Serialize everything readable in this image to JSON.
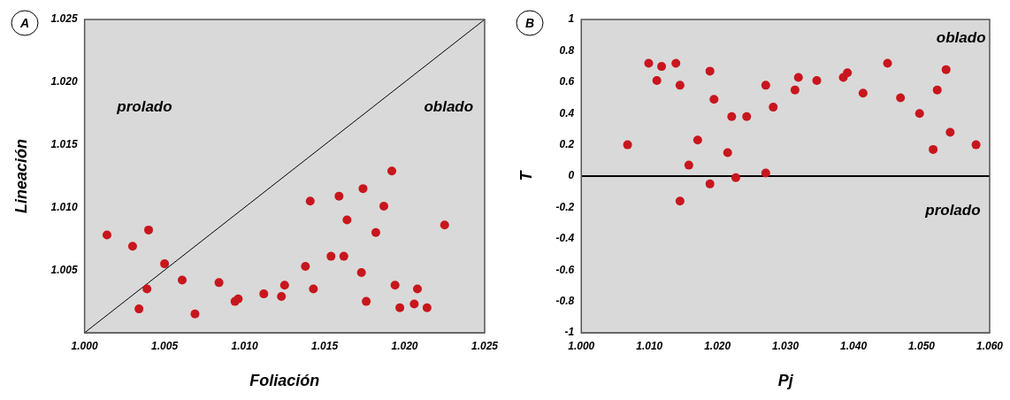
{
  "chart_data": [
    {
      "type": "scatter",
      "xlabel": "Foliación",
      "ylabel": "Lineación",
      "xlim": [
        1.0,
        1.025
      ],
      "xticks": [
        {
          "value": 1.0,
          "label": "1.000"
        },
        {
          "value": 1.005,
          "label": "1.005"
        },
        {
          "value": 1.01,
          "label": "1.010"
        },
        {
          "value": 1.015,
          "label": "1.015"
        },
        {
          "value": 1.02,
          "label": "1.020"
        },
        {
          "value": 1.025,
          "label": "1.025"
        }
      ],
      "ylim": [
        1.0,
        1.025
      ],
      "yticks": [
        {
          "value": 1.005,
          "label": "1.005"
        },
        {
          "value": 1.01,
          "label": "1.010"
        },
        {
          "value": 1.015,
          "label": "1.015"
        },
        {
          "value": 1.02,
          "label": "1.020"
        },
        {
          "value": 1.025,
          "label": "1.025"
        }
      ],
      "grid": false,
      "legend": false,
      "marker": "circle",
      "series": [
        {
          "type": "scatter",
          "color": "#c8161d",
          "x": [
            1.0014,
            1.003,
            1.004,
            1.005,
            1.0039,
            1.0034,
            1.0061,
            1.0069,
            1.0084,
            1.0094,
            1.0096,
            1.0112,
            1.0123,
            1.0125,
            1.0138,
            1.0141,
            1.0143,
            1.0154,
            1.0159,
            1.0162,
            1.0164,
            1.0173,
            1.0174,
            1.0176,
            1.0182,
            1.0187,
            1.0192,
            1.0194,
            1.0197,
            1.0206,
            1.0208,
            1.0214,
            1.0225
          ],
          "values": [
            1.0078,
            1.0069,
            1.0082,
            1.0055,
            1.0035,
            1.0019,
            1.0042,
            1.0015,
            1.004,
            1.0025,
            1.0027,
            1.0031,
            1.0029,
            1.0038,
            1.0053,
            1.0105,
            1.0035,
            1.0061,
            1.0109,
            1.0061,
            1.009,
            1.0048,
            1.0115,
            1.0025,
            1.008,
            1.0101,
            1.0129,
            1.0038,
            1.002,
            1.0023,
            1.0035,
            1.002,
            1.0086
          ]
        },
        {
          "type": "line",
          "color": "#000000",
          "marker": "none",
          "x": [
            1.0,
            1.025
          ],
          "values": [
            1.0,
            1.025
          ]
        }
      ],
      "annotations": [
        "A",
        "prolado",
        "oblado"
      ]
    },
    {
      "type": "scatter",
      "xlabel": "Pj",
      "ylabel": "T",
      "xlim": [
        1.0,
        1.06
      ],
      "xticks": [
        {
          "value": 1.0,
          "label": "1.000"
        },
        {
          "value": 1.01,
          "label": "1.010"
        },
        {
          "value": 1.02,
          "label": "1.020"
        },
        {
          "value": 1.03,
          "label": "1.030"
        },
        {
          "value": 1.04,
          "label": "1.040"
        },
        {
          "value": 1.05,
          "label": "1.050"
        },
        {
          "value": 1.06,
          "label": "1.060"
        }
      ],
      "ylim": [
        -1,
        1
      ],
      "yticks": [
        -1,
        -0.8,
        -0.6,
        -0.4,
        -0.2,
        0,
        0.2,
        0.4,
        0.6,
        0.8,
        1
      ],
      "grid": false,
      "legend": false,
      "marker": "circle",
      "series": [
        {
          "type": "scatter",
          "color": "#c8161d",
          "x": [
            1.0068,
            1.0099,
            1.0118,
            1.0139,
            1.0111,
            1.0145,
            1.0189,
            1.0195,
            1.0171,
            1.0158,
            1.0145,
            1.0189,
            1.0215,
            1.0221,
            1.0243,
            1.0227,
            1.0271,
            1.0271,
            1.0282,
            1.0314,
            1.0319,
            1.0346,
            1.0385,
            1.0391,
            1.0414,
            1.045,
            1.0469,
            1.0497,
            1.0517,
            1.0523,
            1.0536,
            1.0542,
            1.058
          ],
          "values": [
            0.2,
            0.72,
            0.7,
            0.72,
            0.61,
            0.58,
            0.67,
            0.49,
            0.23,
            0.07,
            -0.16,
            -0.05,
            0.15,
            0.38,
            0.38,
            -0.01,
            0.58,
            0.02,
            0.44,
            0.55,
            0.63,
            0.61,
            0.63,
            0.66,
            0.53,
            0.72,
            0.5,
            0.4,
            0.17,
            0.55,
            0.68,
            0.28,
            0.2
          ]
        }
      ],
      "ref_lines": [
        {
          "axis": "y",
          "value": 0,
          "color": "#000000"
        }
      ],
      "annotations": [
        "B",
        "oblado",
        "prolado"
      ]
    }
  ]
}
